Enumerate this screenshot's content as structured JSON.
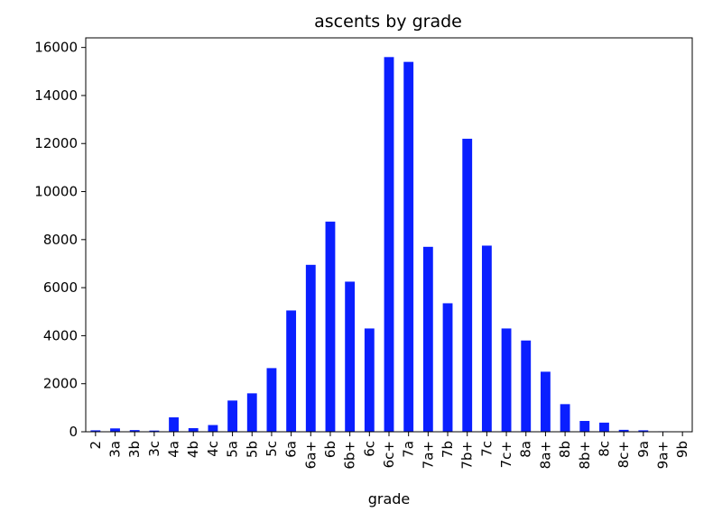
{
  "chart_data": {
    "type": "bar",
    "title": "ascents by grade",
    "xlabel": "grade",
    "ylabel": "",
    "ylim": [
      0,
      16400
    ],
    "yticks": [
      0,
      2000,
      4000,
      6000,
      8000,
      10000,
      12000,
      14000,
      16000
    ],
    "grid": false,
    "bar_color": "#0a1fff",
    "categories": [
      "2",
      "3a",
      "3b",
      "3c",
      "4a",
      "4b",
      "4c",
      "5a",
      "5b",
      "5c",
      "6a",
      "6a+",
      "6b",
      "6b+",
      "6c",
      "6c+",
      "7a",
      "7a+",
      "7b",
      "7b+",
      "7c",
      "7c+",
      "8a",
      "8a+",
      "8b",
      "8b+",
      "8c",
      "8c+",
      "9a",
      "9a+",
      "9b"
    ],
    "values": [
      60,
      140,
      70,
      50,
      600,
      150,
      280,
      1300,
      1600,
      2650,
      5050,
      6950,
      8750,
      6250,
      4300,
      15600,
      15400,
      7700,
      5350,
      12200,
      7750,
      4300,
      3800,
      2500,
      1150,
      450,
      380,
      80,
      60,
      20,
      10
    ]
  }
}
